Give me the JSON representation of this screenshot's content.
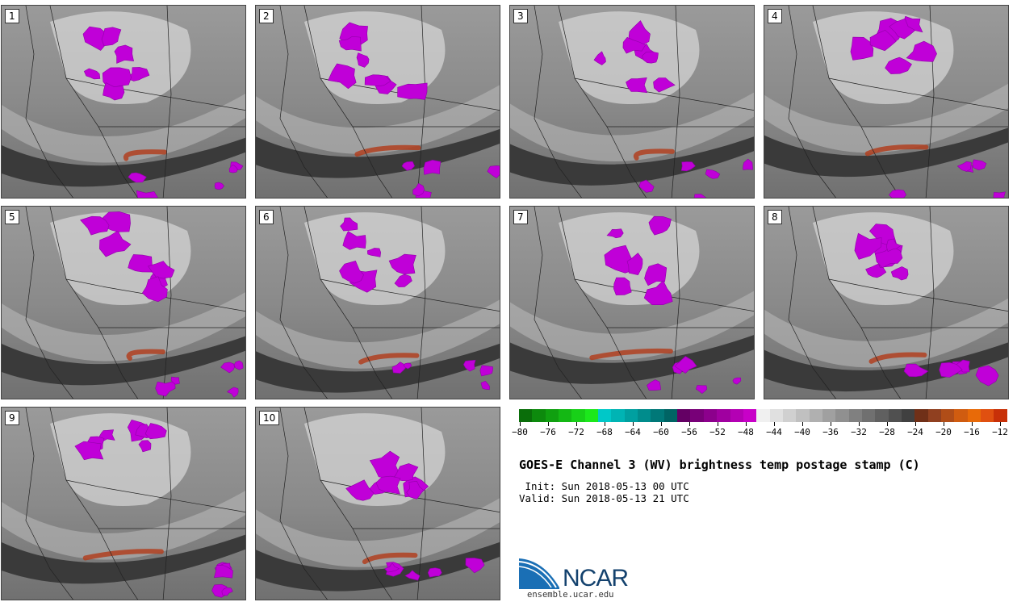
{
  "panels": [
    {
      "label": "1"
    },
    {
      "label": "2"
    },
    {
      "label": "3"
    },
    {
      "label": "4"
    },
    {
      "label": "5"
    },
    {
      "label": "6"
    },
    {
      "label": "7"
    },
    {
      "label": "8"
    },
    {
      "label": "9"
    },
    {
      "label": "10"
    }
  ],
  "colorbar": {
    "colors": [
      "#0a6e0a",
      "#0d8a0d",
      "#10a010",
      "#14b814",
      "#18d018",
      "#1ce81c",
      "#00c8c8",
      "#00b4b4",
      "#00a0a0",
      "#008c8c",
      "#007878",
      "#006464",
      "#640064",
      "#780078",
      "#8c008c",
      "#a000a0",
      "#b400b4",
      "#c800c8",
      "#f0f0f0",
      "#e0e0e0",
      "#d0d0d0",
      "#c0c0c0",
      "#b0b0b0",
      "#a0a0a0",
      "#909090",
      "#808080",
      "#707070",
      "#606060",
      "#505050",
      "#404040",
      "#703018",
      "#904020",
      "#b04d18",
      "#d05c10",
      "#e86a08",
      "#e05010",
      "#c83008"
    ],
    "tick_labels": [
      "−80",
      "−76",
      "−72",
      "−68",
      "−64",
      "−60",
      "−56",
      "−52",
      "−48",
      "−44",
      "−40",
      "−36",
      "−32",
      "−28",
      "−24",
      "−20",
      "−16",
      "−12"
    ]
  },
  "title": "GOES-E Channel 3 (WV) brightness temp postage stamp (C)",
  "init_line": " Init: Sun 2018-05-13 00 UTC",
  "valid_line": "Valid: Sun 2018-05-13 21 UTC",
  "logo_text": "NCAR",
  "website": "ensemble.ucar.edu"
}
